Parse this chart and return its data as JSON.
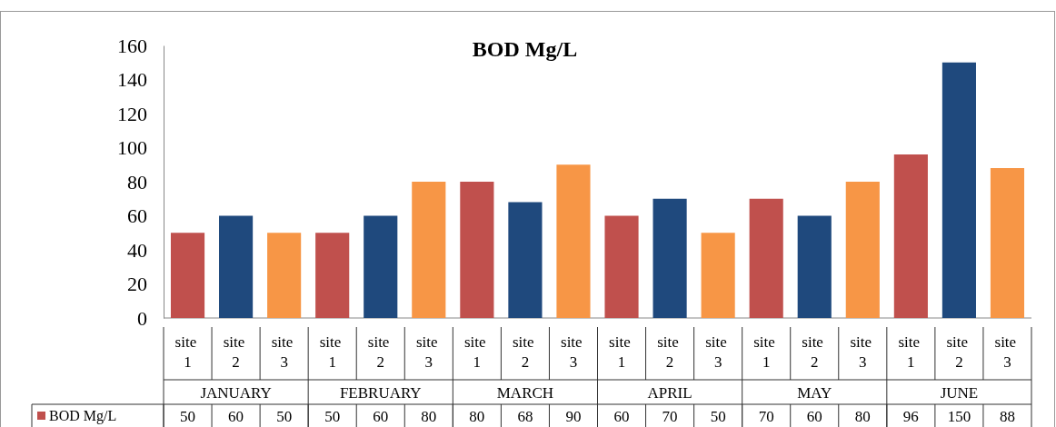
{
  "chart_data": {
    "type": "bar",
    "title": "BOD Mg/L",
    "categories": [
      "site 1",
      "site 2",
      "site 3",
      "site 1",
      "site 2",
      "site 3",
      "site 1",
      "site 2",
      "site 3",
      "site 1",
      "site 2",
      "site 3",
      "site 1",
      "site 2",
      "site 3",
      "site 1",
      "site 2",
      "site 3"
    ],
    "series": [
      {
        "name": "BOD Mg/L",
        "color": "#c0504d",
        "colors": [
          "#c0504d",
          "#1f497d",
          "#f79646",
          "#c0504d",
          "#1f497d",
          "#f79646",
          "#c0504d",
          "#1f497d",
          "#f79646",
          "#c0504d",
          "#1f497d",
          "#f79646",
          "#c0504d",
          "#1f497d",
          "#f79646",
          "#c0504d",
          "#1f497d",
          "#f79646"
        ],
        "values": [
          50,
          60,
          50,
          50,
          60,
          80,
          80,
          68,
          90,
          60,
          70,
          50,
          70,
          60,
          80,
          96,
          150,
          88
        ]
      }
    ],
    "annotations": [
      "JANUARY",
      "FEBRUARY",
      "MARCH",
      "APRIL",
      "MAY",
      "JUNE"
    ],
    "ylim": [
      0,
      160
    ],
    "yticks": [
      0,
      20,
      40,
      60,
      80,
      100,
      120,
      140,
      160
    ],
    "grid": false,
    "legend": "bottom left",
    "data_labels": true
  }
}
